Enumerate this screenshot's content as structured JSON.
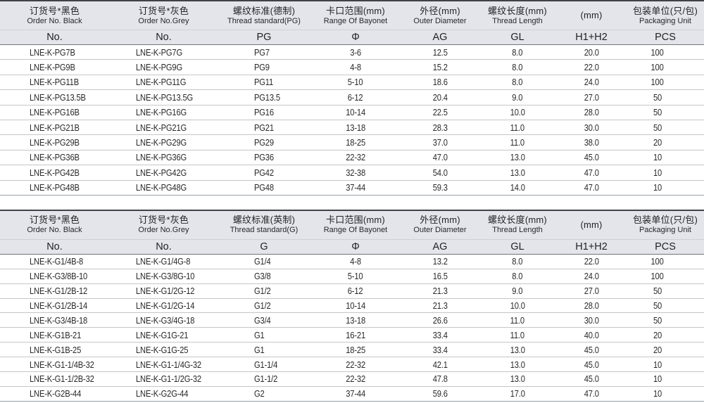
{
  "page": {
    "background": "#ffffff"
  },
  "colors": {
    "header_bg": "#e3e5ea",
    "header_top_border": "#3f4246",
    "header_bottom_border": "#707479",
    "row_divider": "#c6c6c8",
    "table_bottom_border": "#9aa0a6",
    "text": "#29292b"
  },
  "tables": [
    {
      "name": "pg-thread-table",
      "columns": [
        {
          "zh": "订货号*黑色",
          "en": "Order No. Black",
          "sym": "No."
        },
        {
          "zh": "订货号*灰色",
          "en": "Order No.Grey",
          "sym": "No."
        },
        {
          "zh": "螺纹标准(德制)",
          "en": "Thread standard(PG)",
          "sym": "PG"
        },
        {
          "zh": "卡口范围(mm)",
          "en": "Range Of Bayonet",
          "sym": "Φ"
        },
        {
          "zh": "外径(mm)",
          "en": "Outer Diameter",
          "sym": "AG"
        },
        {
          "zh": "螺纹长度(mm)",
          "en": "Thread Length",
          "sym": "GL"
        },
        {
          "zh": "(mm)",
          "en": "",
          "sym": "H1+H2"
        },
        {
          "zh": "包装单位(只/包)",
          "en": "Packaging Unit",
          "sym": "PCS"
        }
      ],
      "rows": [
        [
          "LNE-K-PG7B",
          "LNE-K-PG7G",
          "PG7",
          "3-6",
          "12.5",
          "8.0",
          "20.0",
          "100"
        ],
        [
          "LNE-K-PG9B",
          "LNE-K-PG9G",
          "PG9",
          "4-8",
          "15.2",
          "8.0",
          "22.0",
          "100"
        ],
        [
          "LNE-K-PG11B",
          "LNE-K-PG11G",
          "PG11",
          "5-10",
          "18.6",
          "8.0",
          "24.0",
          "100"
        ],
        [
          "LNE-K-PG13.5B",
          "LNE-K-PG13.5G",
          "PG13.5",
          "6-12",
          "20.4",
          "9.0",
          "27.0",
          "50"
        ],
        [
          "LNE-K-PG16B",
          "LNE-K-PG16G",
          "PG16",
          "10-14",
          "22.5",
          "10.0",
          "28.0",
          "50"
        ],
        [
          "LNE-K-PG21B",
          "LNE-K-PG21G",
          "PG21",
          "13-18",
          "28.3",
          "11.0",
          "30.0",
          "50"
        ],
        [
          "LNE-K-PG29B",
          "LNE-K-PG29G",
          "PG29",
          "18-25",
          "37.0",
          "11.0",
          "38.0",
          "20"
        ],
        [
          "LNE-K-PG36B",
          "LNE-K-PG36G",
          "PG36",
          "22-32",
          "47.0",
          "13.0",
          "45.0",
          "10"
        ],
        [
          "LNE-K-PG42B",
          "LNE-K-PG42G",
          "PG42",
          "32-38",
          "54.0",
          "13.0",
          "47.0",
          "10"
        ],
        [
          "LNE-K-PG48B",
          "LNE-K-PG48G",
          "PG48",
          "37-44",
          "59.3",
          "14.0",
          "47.0",
          "10"
        ]
      ]
    },
    {
      "name": "g-thread-table",
      "columns": [
        {
          "zh": "订货号*黑色",
          "en": "Order No. Black",
          "sym": "No."
        },
        {
          "zh": "订货号*灰色",
          "en": "Order No.Grey",
          "sym": "No."
        },
        {
          "zh": "螺纹标准(英制)",
          "en": "Thread standard(G)",
          "sym": "G"
        },
        {
          "zh": "卡口范围(mm)",
          "en": "Range Of Bayonet",
          "sym": "Φ"
        },
        {
          "zh": "外径(mm)",
          "en": "Outer Diameter",
          "sym": "AG"
        },
        {
          "zh": "螺纹长度(mm)",
          "en": "Thread Length",
          "sym": "GL"
        },
        {
          "zh": "(mm)",
          "en": "",
          "sym": "H1+H2"
        },
        {
          "zh": "包装单位(只/包)",
          "en": "Packaging Unit",
          "sym": "PCS"
        }
      ],
      "rows": [
        [
          "LNE-K-G1/4B-8",
          "LNE-K-G1/4G-8",
          "G1/4",
          "4-8",
          "13.2",
          "8.0",
          "22.0",
          "100"
        ],
        [
          "LNE-K-G3/8B-10",
          "LNE-K-G3/8G-10",
          "G3/8",
          "5-10",
          "16.5",
          "8.0",
          "24.0",
          "100"
        ],
        [
          "LNE-K-G1/2B-12",
          "LNE-K-G1/2G-12",
          "G1/2",
          "6-12",
          "21.3",
          "9.0",
          "27.0",
          "50"
        ],
        [
          "LNE-K-G1/2B-14",
          "LNE-K-G1/2G-14",
          "G1/2",
          "10-14",
          "21.3",
          "10.0",
          "28.0",
          "50"
        ],
        [
          "LNE-K-G3/4B-18",
          "LNE-K-G3/4G-18",
          "G3/4",
          "13-18",
          "26.6",
          "11.0",
          "30.0",
          "50"
        ],
        [
          "LNE-K-G1B-21",
          "LNE-K-G1G-21",
          "G1",
          "16-21",
          "33.4",
          "11.0",
          "40.0",
          "20"
        ],
        [
          "LNE-K-G1B-25",
          "LNE-K-G1G-25",
          "G1",
          "18-25",
          "33.4",
          "13.0",
          "45.0",
          "20"
        ],
        [
          "LNE-K-G1-1/4B-32",
          "LNE-K-G1-1/4G-32",
          "G1-1/4",
          "22-32",
          "42.1",
          "13.0",
          "45.0",
          "10"
        ],
        [
          "LNE-K-G1-1/2B-32",
          "LNE-K-G1-1/2G-32",
          "G1-1/2",
          "22-32",
          "47.8",
          "13.0",
          "45.0",
          "10"
        ],
        [
          "LNE-K-G2B-44",
          "LNE-K-G2G-44",
          "G2",
          "37-44",
          "59.6",
          "17.0",
          "47.0",
          "10"
        ]
      ]
    }
  ]
}
